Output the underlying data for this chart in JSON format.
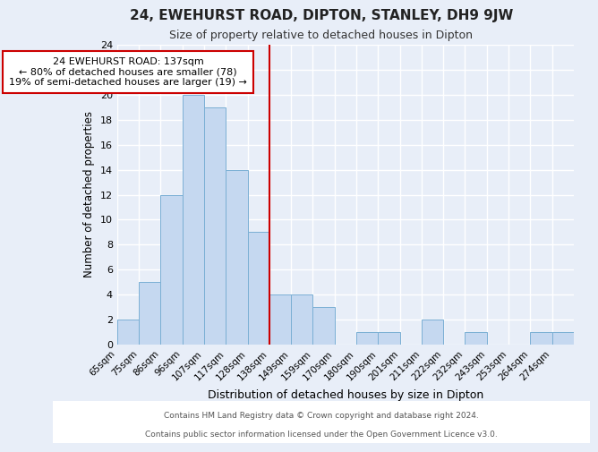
{
  "title": "24, EWEHURST ROAD, DIPTON, STANLEY, DH9 9JW",
  "subtitle": "Size of property relative to detached houses in Dipton",
  "xlabel": "Distribution of detached houses by size in Dipton",
  "ylabel": "Number of detached properties",
  "bar_labels": [
    "65sqm",
    "75sqm",
    "86sqm",
    "96sqm",
    "107sqm",
    "117sqm",
    "128sqm",
    "138sqm",
    "149sqm",
    "159sqm",
    "170sqm",
    "180sqm",
    "190sqm",
    "201sqm",
    "211sqm",
    "222sqm",
    "232sqm",
    "243sqm",
    "253sqm",
    "264sqm",
    "274sqm"
  ],
  "bar_values": [
    2,
    5,
    12,
    20,
    19,
    14,
    9,
    4,
    4,
    3,
    0,
    1,
    1,
    0,
    2,
    0,
    1,
    0,
    0,
    1,
    1
  ],
  "bar_color": "#c5d8f0",
  "bar_edge_color": "#7aafd4",
  "vline_x": 7,
  "vline_color": "#cc0000",
  "annotation_title": "24 EWEHURST ROAD: 137sqm",
  "annotation_line1": "← 80% of detached houses are smaller (78)",
  "annotation_line2": "19% of semi-detached houses are larger (19) →",
  "annotation_box_color": "#ffffff",
  "annotation_box_edge": "#cc0000",
  "footer_line1": "Contains HM Land Registry data © Crown copyright and database right 2024.",
  "footer_line2": "Contains public sector information licensed under the Open Government Licence v3.0.",
  "ylim": [
    0,
    24
  ],
  "background_color": "#e8eef8",
  "plot_bg_color": "#e8eef8",
  "footer_bg": "#ffffff",
  "grid_color": "#ffffff"
}
